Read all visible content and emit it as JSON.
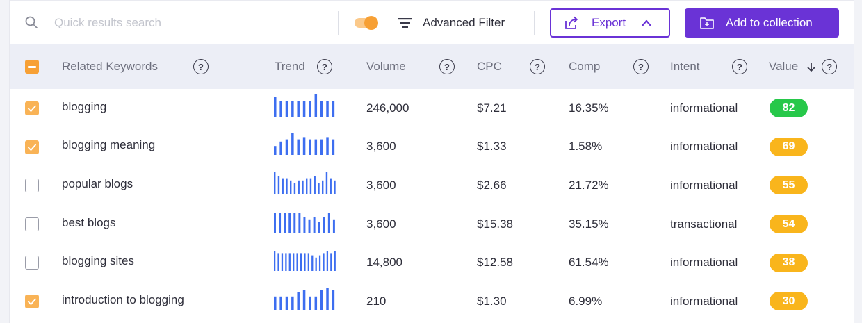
{
  "toolbar": {
    "search_placeholder": "Quick results search",
    "filter_label": "Advanced Filter",
    "export_label": "Export",
    "collection_label": "Add to collection",
    "toggle_on": true
  },
  "columns": {
    "keyword": "Related Keywords",
    "trend": "Trend",
    "volume": "Volume",
    "cpc": "CPC",
    "comp": "Comp",
    "intent": "Intent",
    "value": "Value"
  },
  "colors": {
    "accent": "#6a33d6",
    "checkbox": "#f7a035",
    "trend_bar": "#3d6ef0",
    "value_high": "#27c84a",
    "value_mid": "#f9b51c"
  },
  "rows": [
    {
      "checked": true,
      "keyword": "blogging",
      "trend": [
        0.9,
        0.7,
        0.7,
        0.7,
        0.7,
        0.7,
        0.7,
        1.0,
        0.7,
        0.7,
        0.7
      ],
      "volume": "246,000",
      "cpc": "$7.21",
      "comp": "16.35%",
      "intent": "informational",
      "value": "82"
    },
    {
      "checked": true,
      "keyword": "blogging meaning",
      "trend": [
        0.4,
        0.6,
        0.7,
        1.0,
        0.7,
        0.8,
        0.7,
        0.7,
        0.7,
        0.8,
        0.7
      ],
      "volume": "3,600",
      "cpc": "$1.33",
      "comp": "1.58%",
      "intent": "informational",
      "value": "69"
    },
    {
      "checked": false,
      "keyword": "popular blogs",
      "trend": [
        1.0,
        0.8,
        0.7,
        0.7,
        0.6,
        0.5,
        0.6,
        0.6,
        0.7,
        0.7,
        0.8,
        0.5,
        0.6,
        1.0,
        0.7,
        0.6
      ],
      "volume": "3,600",
      "cpc": "$2.66",
      "comp": "21.72%",
      "intent": "informational",
      "value": "55"
    },
    {
      "checked": false,
      "keyword": "best blogs",
      "trend": [
        0.9,
        0.9,
        0.9,
        0.9,
        0.9,
        0.9,
        0.7,
        0.6,
        0.7,
        0.5,
        0.7,
        0.9,
        0.6
      ],
      "volume": "3,600",
      "cpc": "$15.38",
      "comp": "35.15%",
      "intent": "transactional",
      "value": "54"
    },
    {
      "checked": false,
      "keyword": "blogging sites",
      "trend": [
        0.9,
        0.8,
        0.8,
        0.8,
        0.8,
        0.8,
        0.8,
        0.8,
        0.8,
        0.8,
        0.7,
        0.6,
        0.7,
        0.8,
        0.9,
        0.8,
        0.9
      ],
      "volume": "14,800",
      "cpc": "$12.58",
      "comp": "61.54%",
      "intent": "informational",
      "value": "38"
    },
    {
      "checked": true,
      "keyword": "introduction to blogging",
      "trend": [
        0.6,
        0.6,
        0.6,
        0.6,
        0.8,
        0.9,
        0.6,
        0.6,
        0.9,
        1.0,
        0.9
      ],
      "volume": "210",
      "cpc": "$1.30",
      "comp": "6.99%",
      "intent": "informational",
      "value": "30"
    }
  ]
}
